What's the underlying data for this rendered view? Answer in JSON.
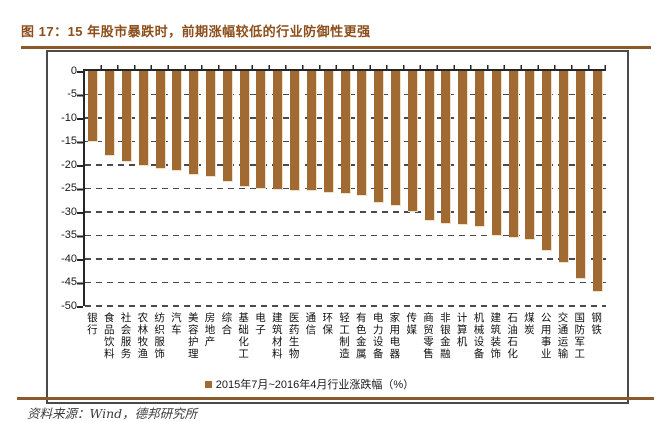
{
  "figure_label": "图 17",
  "source_note": "资料来源：Wind，德邦研究所",
  "colors": {
    "bar": "#A06A32",
    "bar_highlight_edge": "#F0E0C4",
    "title_text": "#8C4E1B",
    "brown_rule": "#8A5A2B",
    "box_border": "#4A4A4A",
    "axis_spine": "#262626",
    "gridline": "#4A4A4A"
  },
  "chart_data": {
    "type": "bar",
    "title": "图 17：15 年股市暴跌时，前期涨幅较低的行业防御性更强",
    "legend_label": "2015年7月~2016年4月行业涨跌幅（%）",
    "legend_position": "bottom-center",
    "xlabel": "",
    "ylabel": "",
    "ylim": [
      -50,
      0
    ],
    "yticks": [
      0,
      -5,
      -10,
      -15,
      -20,
      -25,
      -30,
      -35,
      -40,
      -45,
      -50
    ],
    "grid": "dashed-horizontal",
    "bar_color": "#A06A32",
    "categories": [
      "银行",
      "食品饮料",
      "社会服务",
      "农林牧渔",
      "纺织服饰",
      "汽车",
      "美容护理",
      "房地产",
      "综合",
      "基础化工",
      "电子",
      "建筑材料",
      "医药生物",
      "通信",
      "环保",
      "轻工制造",
      "有色金属",
      "电力设备",
      "家用电器",
      "传媒",
      "商贸零售",
      "非银金融",
      "计算机",
      "机械设备",
      "建筑装饰",
      "石油石化",
      "煤炭",
      "公用事业",
      "交通运输",
      "国防军工",
      "钢铁"
    ],
    "values": [
      -15.1,
      -18.1,
      -19.3,
      -20.3,
      -20.8,
      -21.2,
      -22.1,
      -22.5,
      -23.6,
      -24.6,
      -25.1,
      -25.3,
      -25.5,
      -25.5,
      -25.9,
      -26.2,
      -26.5,
      -28.0,
      -28.8,
      -30.1,
      -32.0,
      -32.6,
      -32.8,
      -33.1,
      -35.2,
      -35.5,
      -35.9,
      -38.4,
      -40.8,
      -44.2,
      -47.0
    ]
  }
}
